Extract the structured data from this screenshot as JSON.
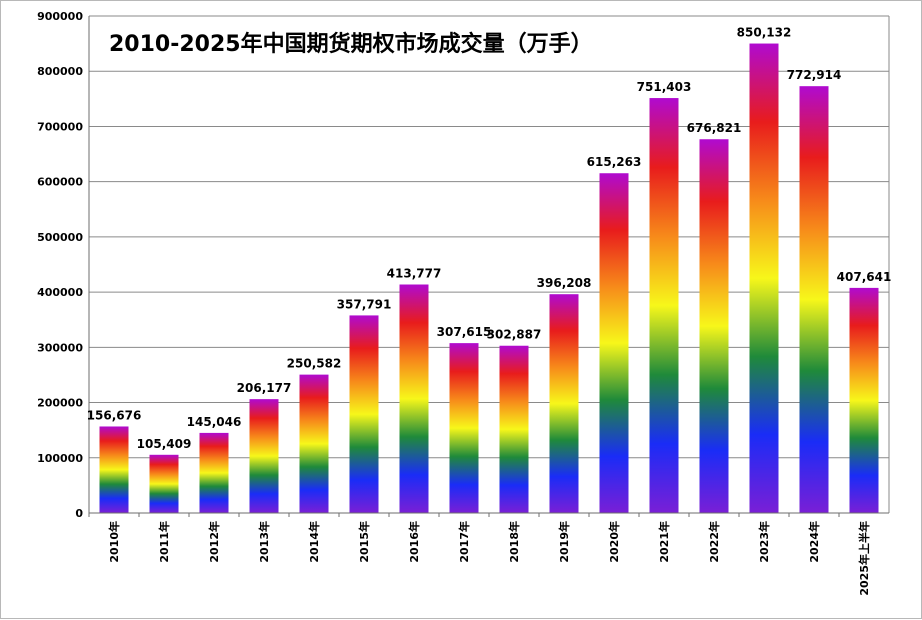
{
  "chart_data": {
    "type": "bar",
    "title": "2010-2025年中国期货期权市场成交量（万手）",
    "categories": [
      "2010年",
      "2011年",
      "2012年",
      "2013年",
      "2014年",
      "2015年",
      "2016年",
      "2017年",
      "2018年",
      "2019年",
      "2020年",
      "2021年",
      "2022年",
      "2023年",
      "2024年",
      "2025年上半年"
    ],
    "values": [
      156676,
      105409,
      145046,
      206177,
      250582,
      357791,
      413777,
      307615,
      302887,
      396208,
      615263,
      751403,
      676821,
      850132,
      772914,
      407641
    ],
    "data_labels": [
      "156,676",
      "105,409",
      "145,046",
      "206,177",
      "250,582",
      "357,791",
      "413,777",
      "307,615",
      "302,887",
      "396,208",
      "615,263",
      "751,403",
      "676,821",
      "850,132",
      "772,914",
      "407,641"
    ],
    "ylim": [
      0,
      900000
    ],
    "yticks": [
      0,
      100000,
      200000,
      300000,
      400000,
      500000,
      600000,
      700000,
      800000,
      900000
    ],
    "ytick_labels": [
      "0",
      "100000",
      "200000",
      "300000",
      "400000",
      "500000",
      "600000",
      "700000",
      "800000",
      "900000"
    ],
    "grid": true,
    "bar_fill": "rainbow-gradient",
    "gradient_colors": [
      "#7a1fd6",
      "#1a2cf7",
      "#1f8a3a",
      "#f7f71a",
      "#f78a1a",
      "#e81c1c",
      "#b00ad0"
    ]
  }
}
